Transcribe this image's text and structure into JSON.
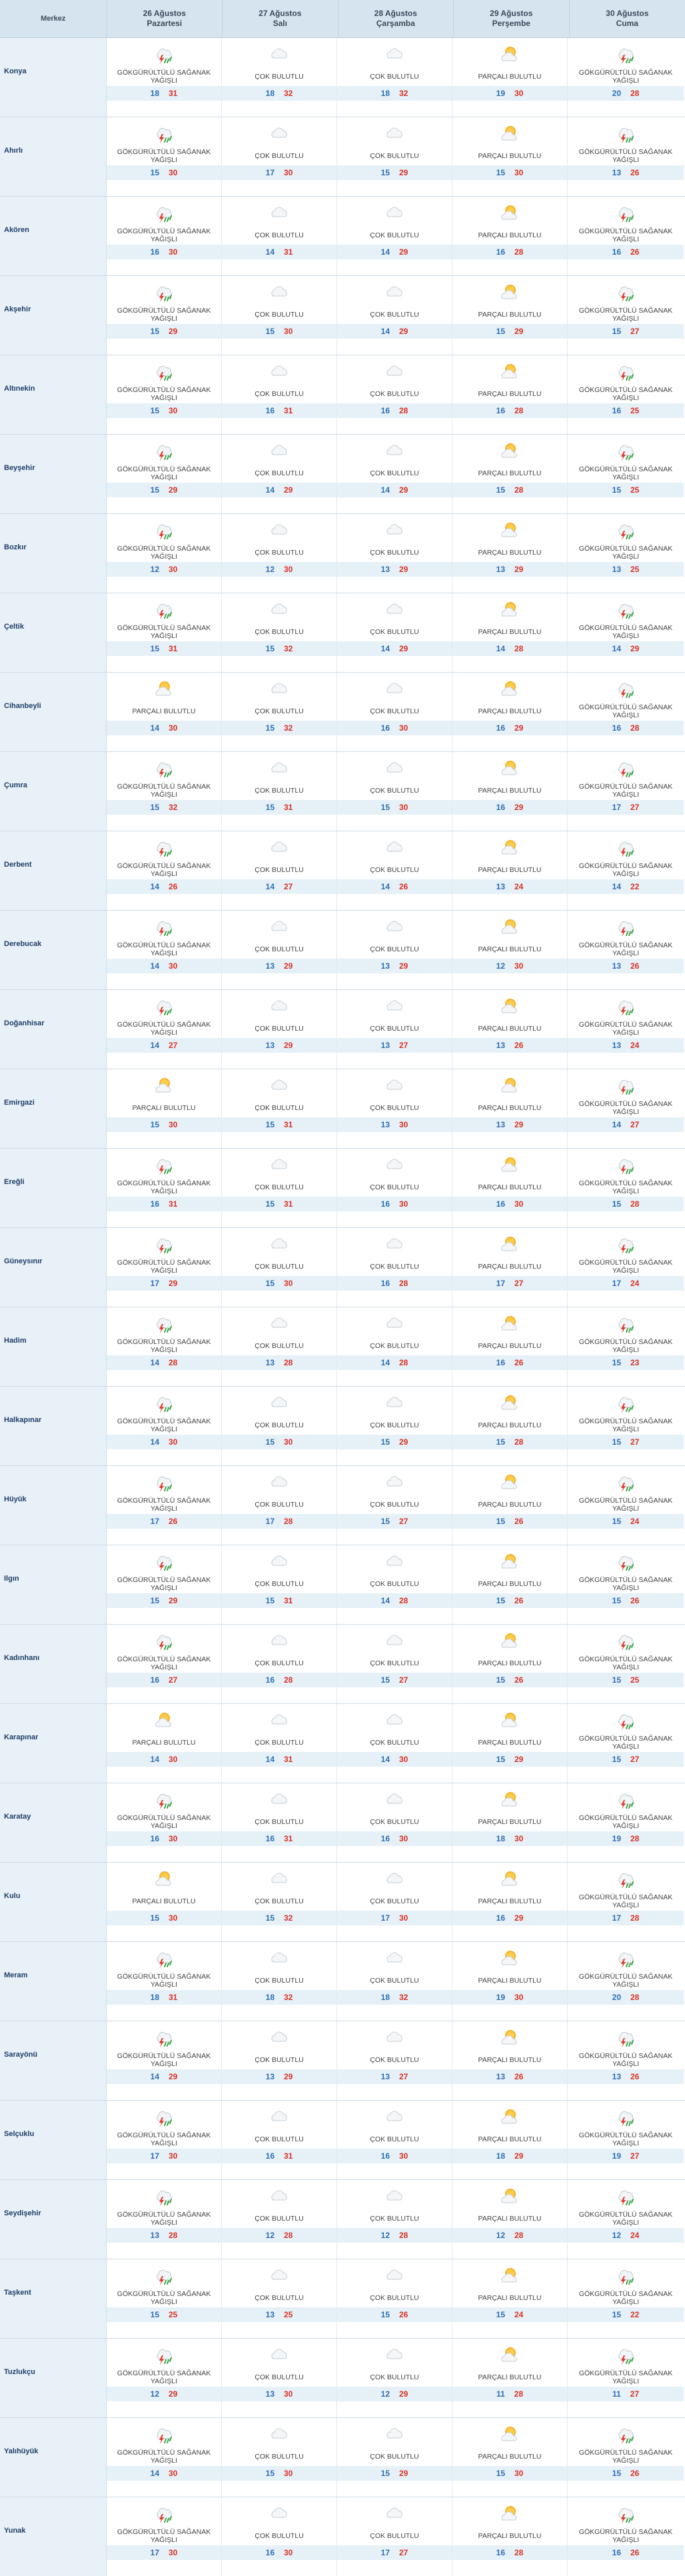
{
  "header": {
    "merkez": "Merkez",
    "days": [
      {
        "date": "26 Ağustos",
        "weekday": "Pazartesi"
      },
      {
        "date": "27 Ağustos",
        "weekday": "Salı"
      },
      {
        "date": "28 Ağustos",
        "weekday": "Çarşamba"
      },
      {
        "date": "29 Ağustos",
        "weekday": "Perşembe"
      },
      {
        "date": "30 Ağustos",
        "weekday": "Cuma"
      }
    ]
  },
  "conditions": {
    "thunder": "GÖKGÜRÜLTÜLÜ SAĞANAK YAĞIŞLI",
    "cloudy": "ÇOK BULUTLU",
    "partly": "PARÇALI BULUTLU"
  },
  "icons": {
    "thunder": "thunderstorm-rain-icon",
    "cloudy": "cloudy-icon",
    "partly": "partly-cloudy-icon"
  },
  "colors": {
    "header_bg": "#d6e4ef",
    "name_bg": "#e8f1f8",
    "temp_min": "#2c6fb7",
    "temp_max": "#d93224"
  },
  "rows": [
    {
      "name": "Konya",
      "days": [
        {
          "cond": "thunder",
          "min": "18",
          "max": "31"
        },
        {
          "cond": "cloudy",
          "min": "18",
          "max": "32"
        },
        {
          "cond": "cloudy",
          "min": "18",
          "max": "32"
        },
        {
          "cond": "partly",
          "min": "19",
          "max": "30"
        },
        {
          "cond": "thunder",
          "min": "20",
          "max": "28"
        }
      ]
    },
    {
      "name": "Ahırlı",
      "days": [
        {
          "cond": "thunder",
          "min": "15",
          "max": "30"
        },
        {
          "cond": "cloudy",
          "min": "17",
          "max": "30"
        },
        {
          "cond": "cloudy",
          "min": "15",
          "max": "29"
        },
        {
          "cond": "partly",
          "min": "15",
          "max": "30"
        },
        {
          "cond": "thunder",
          "min": "13",
          "max": "26"
        }
      ]
    },
    {
      "name": "Akören",
      "days": [
        {
          "cond": "thunder",
          "min": "16",
          "max": "30"
        },
        {
          "cond": "cloudy",
          "min": "14",
          "max": "31"
        },
        {
          "cond": "cloudy",
          "min": "14",
          "max": "29"
        },
        {
          "cond": "partly",
          "min": "16",
          "max": "28"
        },
        {
          "cond": "thunder",
          "min": "16",
          "max": "26"
        }
      ]
    },
    {
      "name": "Akşehir",
      "days": [
        {
          "cond": "thunder",
          "min": "15",
          "max": "29"
        },
        {
          "cond": "cloudy",
          "min": "15",
          "max": "30"
        },
        {
          "cond": "cloudy",
          "min": "14",
          "max": "29"
        },
        {
          "cond": "partly",
          "min": "15",
          "max": "29"
        },
        {
          "cond": "thunder",
          "min": "15",
          "max": "27"
        }
      ]
    },
    {
      "name": "Altınekin",
      "days": [
        {
          "cond": "thunder",
          "min": "15",
          "max": "30"
        },
        {
          "cond": "cloudy",
          "min": "16",
          "max": "31"
        },
        {
          "cond": "cloudy",
          "min": "16",
          "max": "28"
        },
        {
          "cond": "partly",
          "min": "16",
          "max": "28"
        },
        {
          "cond": "thunder",
          "min": "16",
          "max": "25"
        }
      ]
    },
    {
      "name": "Beyşehir",
      "days": [
        {
          "cond": "thunder",
          "min": "15",
          "max": "29"
        },
        {
          "cond": "cloudy",
          "min": "14",
          "max": "29"
        },
        {
          "cond": "cloudy",
          "min": "14",
          "max": "29"
        },
        {
          "cond": "partly",
          "min": "15",
          "max": "28"
        },
        {
          "cond": "thunder",
          "min": "15",
          "max": "25"
        }
      ]
    },
    {
      "name": "Bozkır",
      "days": [
        {
          "cond": "thunder",
          "min": "12",
          "max": "30"
        },
        {
          "cond": "cloudy",
          "min": "12",
          "max": "30"
        },
        {
          "cond": "cloudy",
          "min": "13",
          "max": "29"
        },
        {
          "cond": "partly",
          "min": "13",
          "max": "29"
        },
        {
          "cond": "thunder",
          "min": "13",
          "max": "25"
        }
      ]
    },
    {
      "name": "Çeltik",
      "days": [
        {
          "cond": "thunder",
          "min": "15",
          "max": "31"
        },
        {
          "cond": "cloudy",
          "min": "15",
          "max": "32"
        },
        {
          "cond": "cloudy",
          "min": "14",
          "max": "29"
        },
        {
          "cond": "partly",
          "min": "14",
          "max": "28"
        },
        {
          "cond": "thunder",
          "min": "14",
          "max": "29"
        }
      ]
    },
    {
      "name": "Cihanbeyli",
      "days": [
        {
          "cond": "partly",
          "min": "14",
          "max": "30"
        },
        {
          "cond": "cloudy",
          "min": "15",
          "max": "32"
        },
        {
          "cond": "cloudy",
          "min": "16",
          "max": "30"
        },
        {
          "cond": "partly",
          "min": "16",
          "max": "29"
        },
        {
          "cond": "thunder",
          "min": "16",
          "max": "28"
        }
      ]
    },
    {
      "name": "Çumra",
      "days": [
        {
          "cond": "thunder",
          "min": "15",
          "max": "32"
        },
        {
          "cond": "cloudy",
          "min": "15",
          "max": "31"
        },
        {
          "cond": "cloudy",
          "min": "15",
          "max": "30"
        },
        {
          "cond": "partly",
          "min": "16",
          "max": "29"
        },
        {
          "cond": "thunder",
          "min": "17",
          "max": "27"
        }
      ]
    },
    {
      "name": "Derbent",
      "days": [
        {
          "cond": "thunder",
          "min": "14",
          "max": "26"
        },
        {
          "cond": "cloudy",
          "min": "14",
          "max": "27"
        },
        {
          "cond": "cloudy",
          "min": "14",
          "max": "26"
        },
        {
          "cond": "partly",
          "min": "13",
          "max": "24"
        },
        {
          "cond": "thunder",
          "min": "14",
          "max": "22"
        }
      ]
    },
    {
      "name": "Derebucak",
      "days": [
        {
          "cond": "thunder",
          "min": "14",
          "max": "30"
        },
        {
          "cond": "cloudy",
          "min": "13",
          "max": "29"
        },
        {
          "cond": "cloudy",
          "min": "13",
          "max": "29"
        },
        {
          "cond": "partly",
          "min": "12",
          "max": "30"
        },
        {
          "cond": "thunder",
          "min": "13",
          "max": "26"
        }
      ]
    },
    {
      "name": "Doğanhisar",
      "days": [
        {
          "cond": "thunder",
          "min": "14",
          "max": "27"
        },
        {
          "cond": "cloudy",
          "min": "13",
          "max": "29"
        },
        {
          "cond": "cloudy",
          "min": "13",
          "max": "27"
        },
        {
          "cond": "partly",
          "min": "13",
          "max": "26"
        },
        {
          "cond": "thunder",
          "min": "13",
          "max": "24"
        }
      ]
    },
    {
      "name": "Emirgazi",
      "days": [
        {
          "cond": "partly",
          "min": "15",
          "max": "30"
        },
        {
          "cond": "cloudy",
          "min": "15",
          "max": "31"
        },
        {
          "cond": "cloudy",
          "min": "13",
          "max": "30"
        },
        {
          "cond": "partly",
          "min": "13",
          "max": "29"
        },
        {
          "cond": "thunder",
          "min": "14",
          "max": "27"
        }
      ]
    },
    {
      "name": "Ereğli",
      "days": [
        {
          "cond": "thunder",
          "min": "16",
          "max": "31"
        },
        {
          "cond": "cloudy",
          "min": "15",
          "max": "31"
        },
        {
          "cond": "cloudy",
          "min": "16",
          "max": "30"
        },
        {
          "cond": "partly",
          "min": "16",
          "max": "30"
        },
        {
          "cond": "thunder",
          "min": "15",
          "max": "28"
        }
      ]
    },
    {
      "name": "Güneysınır",
      "days": [
        {
          "cond": "thunder",
          "min": "17",
          "max": "29"
        },
        {
          "cond": "cloudy",
          "min": "15",
          "max": "30"
        },
        {
          "cond": "cloudy",
          "min": "16",
          "max": "28"
        },
        {
          "cond": "partly",
          "min": "17",
          "max": "27"
        },
        {
          "cond": "thunder",
          "min": "17",
          "max": "24"
        }
      ]
    },
    {
      "name": "Hadim",
      "days": [
        {
          "cond": "thunder",
          "min": "14",
          "max": "28"
        },
        {
          "cond": "cloudy",
          "min": "13",
          "max": "28"
        },
        {
          "cond": "cloudy",
          "min": "14",
          "max": "28"
        },
        {
          "cond": "partly",
          "min": "16",
          "max": "26"
        },
        {
          "cond": "thunder",
          "min": "15",
          "max": "23"
        }
      ]
    },
    {
      "name": "Halkapınar",
      "days": [
        {
          "cond": "thunder",
          "min": "14",
          "max": "30"
        },
        {
          "cond": "cloudy",
          "min": "15",
          "max": "30"
        },
        {
          "cond": "cloudy",
          "min": "15",
          "max": "29"
        },
        {
          "cond": "partly",
          "min": "15",
          "max": "28"
        },
        {
          "cond": "thunder",
          "min": "15",
          "max": "27"
        }
      ]
    },
    {
      "name": "Hüyük",
      "days": [
        {
          "cond": "thunder",
          "min": "17",
          "max": "26"
        },
        {
          "cond": "cloudy",
          "min": "17",
          "max": "28"
        },
        {
          "cond": "cloudy",
          "min": "15",
          "max": "27"
        },
        {
          "cond": "partly",
          "min": "15",
          "max": "26"
        },
        {
          "cond": "thunder",
          "min": "15",
          "max": "24"
        }
      ]
    },
    {
      "name": "Ilgın",
      "days": [
        {
          "cond": "thunder",
          "min": "15",
          "max": "29"
        },
        {
          "cond": "cloudy",
          "min": "15",
          "max": "31"
        },
        {
          "cond": "cloudy",
          "min": "14",
          "max": "28"
        },
        {
          "cond": "partly",
          "min": "15",
          "max": "26"
        },
        {
          "cond": "thunder",
          "min": "15",
          "max": "26"
        }
      ]
    },
    {
      "name": "Kadınhanı",
      "days": [
        {
          "cond": "thunder",
          "min": "16",
          "max": "27"
        },
        {
          "cond": "cloudy",
          "min": "16",
          "max": "28"
        },
        {
          "cond": "cloudy",
          "min": "15",
          "max": "27"
        },
        {
          "cond": "partly",
          "min": "15",
          "max": "26"
        },
        {
          "cond": "thunder",
          "min": "15",
          "max": "25"
        }
      ]
    },
    {
      "name": "Karapınar",
      "days": [
        {
          "cond": "partly",
          "min": "14",
          "max": "30"
        },
        {
          "cond": "cloudy",
          "min": "14",
          "max": "31"
        },
        {
          "cond": "cloudy",
          "min": "14",
          "max": "30"
        },
        {
          "cond": "partly",
          "min": "15",
          "max": "29"
        },
        {
          "cond": "thunder",
          "min": "15",
          "max": "27"
        }
      ]
    },
    {
      "name": "Karatay",
      "days": [
        {
          "cond": "thunder",
          "min": "16",
          "max": "30"
        },
        {
          "cond": "cloudy",
          "min": "16",
          "max": "31"
        },
        {
          "cond": "cloudy",
          "min": "16",
          "max": "30"
        },
        {
          "cond": "partly",
          "min": "18",
          "max": "30"
        },
        {
          "cond": "thunder",
          "min": "19",
          "max": "28"
        }
      ]
    },
    {
      "name": "Kulu",
      "days": [
        {
          "cond": "partly",
          "min": "15",
          "max": "30"
        },
        {
          "cond": "cloudy",
          "min": "15",
          "max": "32"
        },
        {
          "cond": "cloudy",
          "min": "17",
          "max": "30"
        },
        {
          "cond": "partly",
          "min": "16",
          "max": "29"
        },
        {
          "cond": "thunder",
          "min": "17",
          "max": "28"
        }
      ]
    },
    {
      "name": "Meram",
      "days": [
        {
          "cond": "thunder",
          "min": "18",
          "max": "31"
        },
        {
          "cond": "cloudy",
          "min": "18",
          "max": "32"
        },
        {
          "cond": "cloudy",
          "min": "18",
          "max": "32"
        },
        {
          "cond": "partly",
          "min": "19",
          "max": "30"
        },
        {
          "cond": "thunder",
          "min": "20",
          "max": "28"
        }
      ]
    },
    {
      "name": "Sarayönü",
      "days": [
        {
          "cond": "thunder",
          "min": "14",
          "max": "29"
        },
        {
          "cond": "cloudy",
          "min": "13",
          "max": "29"
        },
        {
          "cond": "cloudy",
          "min": "13",
          "max": "27"
        },
        {
          "cond": "partly",
          "min": "13",
          "max": "26"
        },
        {
          "cond": "thunder",
          "min": "13",
          "max": "26"
        }
      ]
    },
    {
      "name": "Selçuklu",
      "days": [
        {
          "cond": "thunder",
          "min": "17",
          "max": "30"
        },
        {
          "cond": "cloudy",
          "min": "16",
          "max": "31"
        },
        {
          "cond": "cloudy",
          "min": "16",
          "max": "30"
        },
        {
          "cond": "partly",
          "min": "18",
          "max": "29"
        },
        {
          "cond": "thunder",
          "min": "19",
          "max": "27"
        }
      ]
    },
    {
      "name": "Seydişehir",
      "days": [
        {
          "cond": "thunder",
          "min": "13",
          "max": "28"
        },
        {
          "cond": "cloudy",
          "min": "12",
          "max": "28"
        },
        {
          "cond": "cloudy",
          "min": "12",
          "max": "28"
        },
        {
          "cond": "partly",
          "min": "12",
          "max": "28"
        },
        {
          "cond": "thunder",
          "min": "12",
          "max": "24"
        }
      ]
    },
    {
      "name": "Taşkent",
      "days": [
        {
          "cond": "thunder",
          "min": "15",
          "max": "25"
        },
        {
          "cond": "cloudy",
          "min": "13",
          "max": "25"
        },
        {
          "cond": "cloudy",
          "min": "15",
          "max": "26"
        },
        {
          "cond": "partly",
          "min": "15",
          "max": "24"
        },
        {
          "cond": "thunder",
          "min": "15",
          "max": "22"
        }
      ]
    },
    {
      "name": "Tuzlukçu",
      "days": [
        {
          "cond": "thunder",
          "min": "12",
          "max": "29"
        },
        {
          "cond": "cloudy",
          "min": "13",
          "max": "30"
        },
        {
          "cond": "cloudy",
          "min": "12",
          "max": "29"
        },
        {
          "cond": "partly",
          "min": "11",
          "max": "28"
        },
        {
          "cond": "thunder",
          "min": "11",
          "max": "27"
        }
      ]
    },
    {
      "name": "Yalıhüyük",
      "days": [
        {
          "cond": "thunder",
          "min": "14",
          "max": "30"
        },
        {
          "cond": "cloudy",
          "min": "15",
          "max": "30"
        },
        {
          "cond": "cloudy",
          "min": "15",
          "max": "29"
        },
        {
          "cond": "partly",
          "min": "15",
          "max": "30"
        },
        {
          "cond": "thunder",
          "min": "15",
          "max": "26"
        }
      ]
    },
    {
      "name": "Yunak",
      "days": [
        {
          "cond": "thunder",
          "min": "17",
          "max": "30"
        },
        {
          "cond": "cloudy",
          "min": "16",
          "max": "30"
        },
        {
          "cond": "cloudy",
          "min": "17",
          "max": "27"
        },
        {
          "cond": "partly",
          "min": "16",
          "max": "28"
        },
        {
          "cond": "thunder",
          "min": "16",
          "max": "26"
        }
      ]
    }
  ]
}
